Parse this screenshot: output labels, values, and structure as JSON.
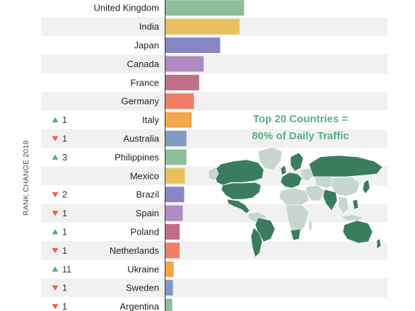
{
  "chart_data": {
    "type": "bar",
    "orientation": "horizontal",
    "title": "",
    "ylabel": "RANK CHANGE 2018",
    "xlim": [
      0,
      10
    ],
    "categories": [
      "United Kingdom",
      "India",
      "Japan",
      "Canada",
      "France",
      "Germany",
      "Italy",
      "Australia",
      "Philippines",
      "Mexico",
      "Brazil",
      "Spain",
      "Poland",
      "Netherlands",
      "Ukraine",
      "Sweden",
      "Argentina"
    ],
    "values": [
      10.5,
      9.9,
      7.3,
      5.1,
      4.5,
      3.8,
      3.5,
      2.8,
      2.8,
      2.6,
      2.5,
      2.3,
      1.9,
      1.9,
      1.1,
      1.0,
      0.9
    ],
    "rank_change": [
      {
        "dir": "",
        "value": ""
      },
      {
        "dir": "",
        "value": ""
      },
      {
        "dir": "",
        "value": ""
      },
      {
        "dir": "",
        "value": ""
      },
      {
        "dir": "",
        "value": ""
      },
      {
        "dir": "",
        "value": ""
      },
      {
        "dir": "up",
        "value": "1"
      },
      {
        "dir": "down",
        "value": "1"
      },
      {
        "dir": "up",
        "value": "3"
      },
      {
        "dir": "",
        "value": ""
      },
      {
        "dir": "down",
        "value": "2"
      },
      {
        "dir": "down",
        "value": "1"
      },
      {
        "dir": "up",
        "value": "1"
      },
      {
        "dir": "down",
        "value": "1"
      },
      {
        "dir": "up",
        "value": "11"
      },
      {
        "dir": "down",
        "value": "1"
      },
      {
        "dir": "down",
        "value": "1"
      }
    ],
    "bar_colors": [
      "#8fbc9a",
      "#e8c15e",
      "#8a86c6",
      "#b08bc4",
      "#bf6f88",
      "#ef7f65",
      "#f3a64a",
      "#7f9bbf",
      "#8fbc9a",
      "#e8c15e",
      "#8a86c6",
      "#b08bc4",
      "#bf6f88",
      "#ef7f65",
      "#f3a64a",
      "#7f9bbf",
      "#8fbc9a"
    ],
    "up_color": "#5aae86",
    "down_color": "#e8664a",
    "grid": false,
    "legend": "none"
  },
  "callout": {
    "line1": "Top 20 Countries =",
    "line2": "80% of Daily Traffic"
  },
  "map": {
    "highlight_color": "#3a7d5e",
    "other_color": "#c8d6cf"
  }
}
